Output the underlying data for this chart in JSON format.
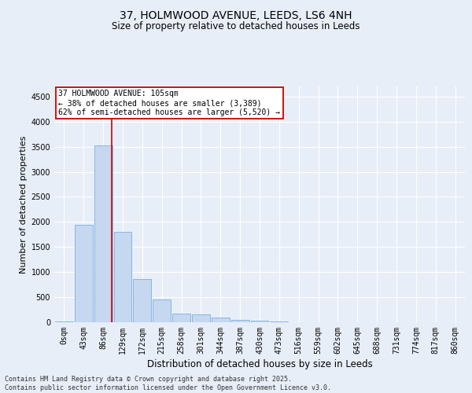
{
  "title_line1": "37, HOLMWOOD AVENUE, LEEDS, LS6 4NH",
  "title_line2": "Size of property relative to detached houses in Leeds",
  "xlabel": "Distribution of detached houses by size in Leeds",
  "ylabel": "Number of detached properties",
  "bar_labels": [
    "0sqm",
    "43sqm",
    "86sqm",
    "129sqm",
    "172sqm",
    "215sqm",
    "258sqm",
    "301sqm",
    "344sqm",
    "387sqm",
    "430sqm",
    "473sqm",
    "516sqm",
    "559sqm",
    "602sqm",
    "645sqm",
    "688sqm",
    "731sqm",
    "774sqm",
    "817sqm",
    "860sqm"
  ],
  "bar_values": [
    20,
    1940,
    3520,
    1800,
    855,
    450,
    175,
    160,
    90,
    50,
    30,
    15,
    5,
    2,
    1,
    0,
    0,
    0,
    0,
    0,
    0
  ],
  "bar_color": "#c5d8f0",
  "bar_edge_color": "#7aafe0",
  "vline_x": 2.45,
  "vline_color": "#cc0000",
  "annotation_text": "37 HOLMWOOD AVENUE: 105sqm\n← 38% of detached houses are smaller (3,389)\n62% of semi-detached houses are larger (5,520) →",
  "annotation_box_facecolor": "#ffffff",
  "annotation_box_edgecolor": "#cc0000",
  "ylim": [
    0,
    4700
  ],
  "yticks": [
    0,
    500,
    1000,
    1500,
    2000,
    2500,
    3000,
    3500,
    4000,
    4500
  ],
  "bg_color": "#e8eef8",
  "grid_color": "#ffffff",
  "footer_line1": "Contains HM Land Registry data © Crown copyright and database right 2025.",
  "footer_line2": "Contains public sector information licensed under the Open Government Licence v3.0.",
  "title_fontsize": 10,
  "subtitle_fontsize": 8.5,
  "tick_fontsize": 7,
  "annot_fontsize": 7,
  "ylabel_fontsize": 8,
  "xlabel_fontsize": 8.5,
  "footer_fontsize": 6
}
